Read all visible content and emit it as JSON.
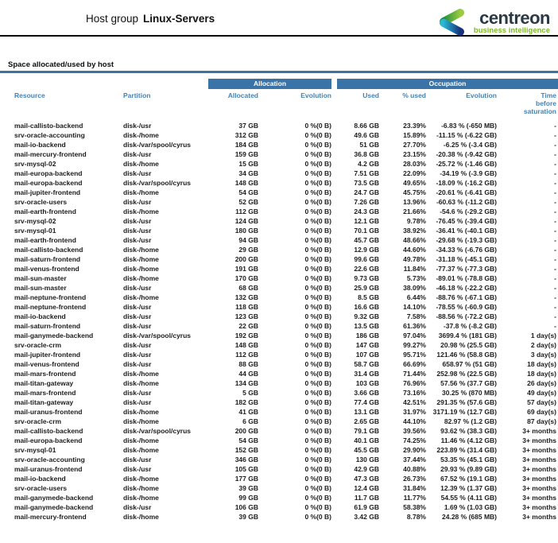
{
  "header": {
    "title_prefix": "Host group",
    "title_name": "Linux-Servers",
    "logo": {
      "brand": "centreon",
      "tagline": "business intelligence"
    }
  },
  "section": {
    "title": "Space allocated/used by host"
  },
  "table": {
    "groups": {
      "allocation": "Allocation",
      "occupation": "Occupation"
    },
    "columns": [
      "Resource",
      "Partition",
      "Allocated",
      "Evolution",
      "Used",
      "% used",
      "Evolution",
      "Time\nbefore\nsaturation"
    ],
    "rows": [
      [
        "mail-callisto-backend",
        "disk-/usr",
        "37 GB",
        "0 %(0 B)",
        "8.66 GB",
        "23.39%",
        "-6.83 % (-650 MB)",
        "-"
      ],
      [
        "srv-oracle-accounting",
        "disk-/home",
        "312 GB",
        "0 %(0 B)",
        "49.6 GB",
        "15.89%",
        "-11.15 % (-6.22 GB)",
        "-"
      ],
      [
        "mail-io-backend",
        "disk-/var/spool/cyrus",
        "184 GB",
        "0 %(0 B)",
        "51 GB",
        "27.70%",
        "-6.25 % (-3.4 GB)",
        "-"
      ],
      [
        "mail-mercury-frontend",
        "disk-/usr",
        "159 GB",
        "0 %(0 B)",
        "36.8 GB",
        "23.15%",
        "-20.38 % (-9.42 GB)",
        "-"
      ],
      [
        "srv-mysql-02",
        "disk-/home",
        "15 GB",
        "0 %(0 B)",
        "4.2 GB",
        "28.03%",
        "-25.72 % (-1.46 GB)",
        "-"
      ],
      [
        "mail-europa-backend",
        "disk-/usr",
        "34 GB",
        "0 %(0 B)",
        "7.51 GB",
        "22.09%",
        "-34.19 % (-3.9 GB)",
        "-"
      ],
      [
        "mail-europa-backend",
        "disk-/var/spool/cyrus",
        "148 GB",
        "0 %(0 B)",
        "73.5 GB",
        "49.65%",
        "-18.09 % (-16.2 GB)",
        "-"
      ],
      [
        "mail-jupiter-frontend",
        "disk-/home",
        "54 GB",
        "0 %(0 B)",
        "24.7 GB",
        "45.75%",
        "-20.61 % (-6.41 GB)",
        "-"
      ],
      [
        "srv-oracle-users",
        "disk-/usr",
        "52 GB",
        "0 %(0 B)",
        "7.26 GB",
        "13.96%",
        "-60.63 % (-11.2 GB)",
        "-"
      ],
      [
        "mail-earth-frontend",
        "disk-/home",
        "112 GB",
        "0 %(0 B)",
        "24.3 GB",
        "21.66%",
        "-54.6 % (-29.2 GB)",
        "-"
      ],
      [
        "srv-mysql-02",
        "disk-/usr",
        "124 GB",
        "0 %(0 B)",
        "12.1 GB",
        "9.78%",
        "-76.45 % (-39.4 GB)",
        "-"
      ],
      [
        "srv-mysql-01",
        "disk-/usr",
        "180 GB",
        "0 %(0 B)",
        "70.1 GB",
        "38.92%",
        "-36.41 % (-40.1 GB)",
        "-"
      ],
      [
        "mail-earth-frontend",
        "disk-/usr",
        "94 GB",
        "0 %(0 B)",
        "45.7 GB",
        "48.66%",
        "-29.68 % (-19.3 GB)",
        "-"
      ],
      [
        "mail-callisto-backend",
        "disk-/home",
        "29 GB",
        "0 %(0 B)",
        "12.9 GB",
        "44.60%",
        "-34.33 % (-6.76 GB)",
        "-"
      ],
      [
        "mail-saturn-frontend",
        "disk-/home",
        "200 GB",
        "0 %(0 B)",
        "99.6 GB",
        "49.78%",
        "-31.18 % (-45.1 GB)",
        "-"
      ],
      [
        "mail-venus-frontend",
        "disk-/home",
        "191 GB",
        "0 %(0 B)",
        "22.6 GB",
        "11.84%",
        "-77.37 % (-77.3 GB)",
        "-"
      ],
      [
        "mail-sun-master",
        "disk-/home",
        "170 GB",
        "0 %(0 B)",
        "9.73 GB",
        "5.73%",
        "-89.01 % (-78.8 GB)",
        "-"
      ],
      [
        "mail-sun-master",
        "disk-/usr",
        "68 GB",
        "0 %(0 B)",
        "25.9 GB",
        "38.09%",
        "-46.18 % (-22.2 GB)",
        "-"
      ],
      [
        "mail-neptune-frontend",
        "disk-/home",
        "132 GB",
        "0 %(0 B)",
        "8.5 GB",
        "6.44%",
        "-88.76 % (-67.1 GB)",
        "-"
      ],
      [
        "mail-neptune-frontend",
        "disk-/usr",
        "118 GB",
        "0 %(0 B)",
        "16.6 GB",
        "14.10%",
        "-78.55 % (-60.9 GB)",
        "-"
      ],
      [
        "mail-io-backend",
        "disk-/usr",
        "123 GB",
        "0 %(0 B)",
        "9.32 GB",
        "7.58%",
        "-88.56 % (-72.2 GB)",
        "-"
      ],
      [
        "mail-saturn-frontend",
        "disk-/usr",
        "22 GB",
        "0 %(0 B)",
        "13.5 GB",
        "61.36%",
        "-37.8 % (-8.2 GB)",
        "-"
      ],
      [
        "mail-ganymede-backend",
        "disk-/var/spool/cyrus",
        "192 GB",
        "0 %(0 B)",
        "186 GB",
        "97.04%",
        "3699.4 % (181 GB)",
        "1 day(s)"
      ],
      [
        "srv-oracle-crm",
        "disk-/usr",
        "148 GB",
        "0 %(0 B)",
        "147 GB",
        "99.27%",
        "20.98 % (25.5 GB)",
        "2 day(s)"
      ],
      [
        "mail-jupiter-frontend",
        "disk-/usr",
        "112 GB",
        "0 %(0 B)",
        "107 GB",
        "95.71%",
        "121.46 % (58.8 GB)",
        "3 day(s)"
      ],
      [
        "mail-venus-frontend",
        "disk-/usr",
        "88 GB",
        "0 %(0 B)",
        "58.7 GB",
        "66.69%",
        "658.97 % (51 GB)",
        "18 day(s)"
      ],
      [
        "mail-mars-frontend",
        "disk-/home",
        "44 GB",
        "0 %(0 B)",
        "31.4 GB",
        "71.44%",
        "252.98 % (22.5 GB)",
        "18 day(s)"
      ],
      [
        "mail-titan-gateway",
        "disk-/home",
        "134 GB",
        "0 %(0 B)",
        "103 GB",
        "76.96%",
        "57.56 % (37.7 GB)",
        "26 day(s)"
      ],
      [
        "mail-mars-frontend",
        "disk-/usr",
        "5 GB",
        "0 %(0 B)",
        "3.66 GB",
        "73.16%",
        "30.25 % (870 MB)",
        "49 day(s)"
      ],
      [
        "mail-titan-gateway",
        "disk-/usr",
        "182 GB",
        "0 %(0 B)",
        "77.4 GB",
        "42.51%",
        "291.35 % (57.6 GB)",
        "57 day(s)"
      ],
      [
        "mail-uranus-frontend",
        "disk-/home",
        "41 GB",
        "0 %(0 B)",
        "13.1 GB",
        "31.97%",
        "3171.19 % (12.7 GB)",
        "69 day(s)"
      ],
      [
        "srv-oracle-crm",
        "disk-/home",
        "6 GB",
        "0 %(0 B)",
        "2.65 GB",
        "44.10%",
        "82.97 % (1.2 GB)",
        "87 day(s)"
      ],
      [
        "mail-callisto-backend",
        "disk-/var/spool/cyrus",
        "200 GB",
        "0 %(0 B)",
        "79.1 GB",
        "39.56%",
        "93.62 % (38.3 GB)",
        "3+ months"
      ],
      [
        "mail-europa-backend",
        "disk-/home",
        "54 GB",
        "0 %(0 B)",
        "40.1 GB",
        "74.25%",
        "11.46 % (4.12 GB)",
        "3+ months"
      ],
      [
        "srv-mysql-01",
        "disk-/home",
        "152 GB",
        "0 %(0 B)",
        "45.5 GB",
        "29.90%",
        "223.89 % (31.4 GB)",
        "3+ months"
      ],
      [
        "srv-oracle-accounting",
        "disk-/usr",
        "346 GB",
        "0 %(0 B)",
        "130 GB",
        "37.44%",
        "53.35 % (45.1 GB)",
        "3+ months"
      ],
      [
        "mail-uranus-frontend",
        "disk-/usr",
        "105 GB",
        "0 %(0 B)",
        "42.9 GB",
        "40.88%",
        "29.93 % (9.89 GB)",
        "3+ months"
      ],
      [
        "mail-io-backend",
        "disk-/home",
        "177 GB",
        "0 %(0 B)",
        "47.3 GB",
        "26.73%",
        "67.52 % (19.1 GB)",
        "3+ months"
      ],
      [
        "srv-oracle-users",
        "disk-/home",
        "39 GB",
        "0 %(0 B)",
        "12.4 GB",
        "31.84%",
        "12.39 % (1.37 GB)",
        "3+ months"
      ],
      [
        "mail-ganymede-backend",
        "disk-/home",
        "99 GB",
        "0 %(0 B)",
        "11.7 GB",
        "11.77%",
        "54.55 % (4.11 GB)",
        "3+ months"
      ],
      [
        "mail-ganymede-backend",
        "disk-/usr",
        "106 GB",
        "0 %(0 B)",
        "61.9 GB",
        "58.38%",
        "1.69 % (1.03 GB)",
        "3+ months"
      ],
      [
        "mail-mercury-frontend",
        "disk-/home",
        "39 GB",
        "0 %(0 B)",
        "3.42 GB",
        "8.78%",
        "24.28 % (685 MB)",
        "3+ months"
      ]
    ]
  },
  "colors": {
    "accent_blue": "#3a73a7",
    "header_text_blue": "#4383b8",
    "brand_navy": "#2b3944",
    "brand_green": "#7fb82a",
    "logo_green_dark": "#1e8e3e",
    "logo_green_light": "#9ccc3d",
    "logo_blue_light": "#29b7d3",
    "logo_blue_dark": "#15327c",
    "rule_black": "#000000"
  }
}
